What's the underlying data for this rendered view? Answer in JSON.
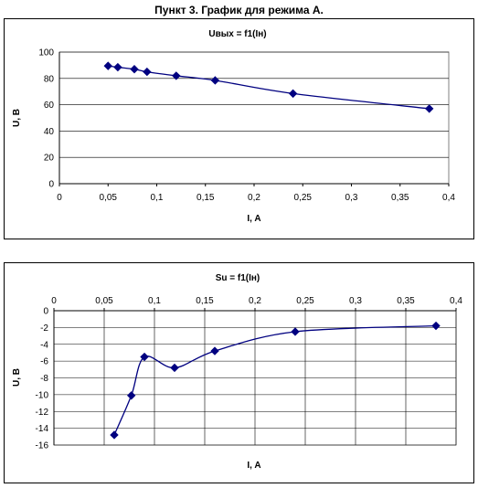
{
  "page_title": "Пункт 3. График для режима А.",
  "colors": {
    "series": "#000080",
    "grid": "#000000",
    "background": "#ffffff"
  },
  "chart_data": [
    {
      "type": "line",
      "title": "Uвых = f1(Iн)",
      "xlabel": "I, A",
      "ylabel": "U, B",
      "xlim": [
        0,
        0.4
      ],
      "ylim": [
        0,
        100
      ],
      "x_ticks": [
        "0",
        "0,05",
        "0,1",
        "0,15",
        "0,2",
        "0,25",
        "0,3",
        "0,35",
        "0,4"
      ],
      "y_ticks": [
        "0",
        "20",
        "40",
        "60",
        "80",
        "100"
      ],
      "x_axis_position": "bottom",
      "grid": "horizontal",
      "legend": "none",
      "series": [
        {
          "x": [
            0.05,
            0.06,
            0.077,
            0.09,
            0.12,
            0.16,
            0.24,
            0.38
          ],
          "y": [
            89.5,
            88.5,
            87,
            85,
            82,
            78.5,
            68.5,
            57
          ]
        }
      ]
    },
    {
      "type": "line",
      "title": "Su = f1(Iн)",
      "xlabel": "I, A",
      "ylabel": "U, B",
      "xlim": [
        0,
        0.4
      ],
      "ylim": [
        -16,
        0
      ],
      "x_ticks": [
        "0",
        "0,05",
        "0,1",
        "0,15",
        "0,2",
        "0,25",
        "0,3",
        "0,35",
        "0,4"
      ],
      "y_ticks": [
        "0",
        "-2",
        "-4",
        "-6",
        "-8",
        "-10",
        "-12",
        "-14",
        "-16"
      ],
      "x_axis_position": "top",
      "grid": "both",
      "legend": "none",
      "series": [
        {
          "x": [
            0.06,
            0.077,
            0.09,
            0.12,
            0.16,
            0.24,
            0.38
          ],
          "y": [
            -14.8,
            -10.1,
            -5.5,
            -6.8,
            -4.8,
            -2.5,
            -1.8
          ]
        }
      ]
    }
  ]
}
